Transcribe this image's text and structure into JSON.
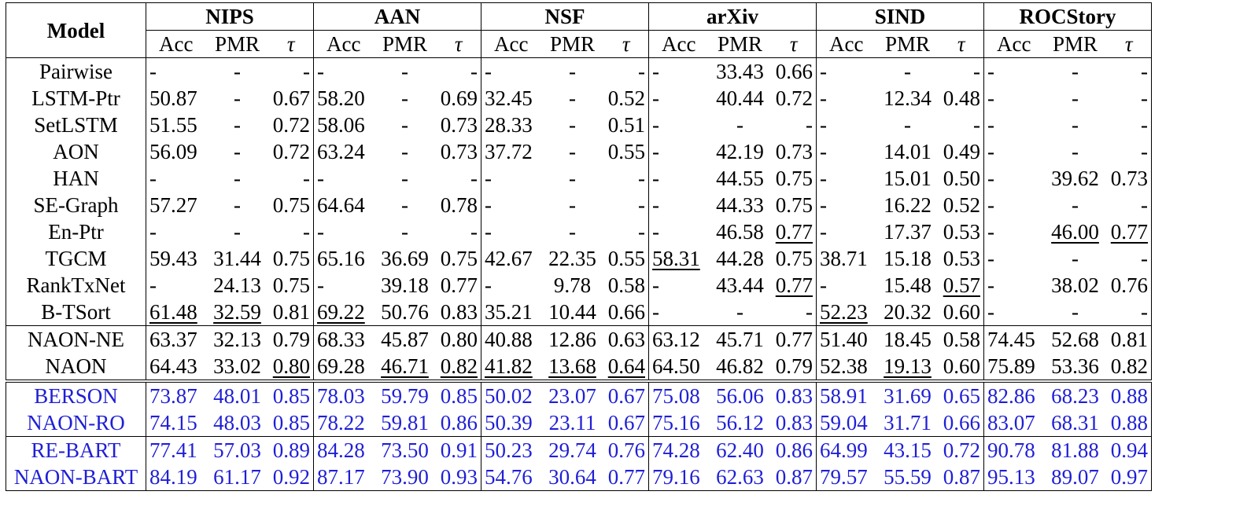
{
  "header": {
    "model_label": "Model",
    "groups": [
      "NIPS",
      "AAN",
      "NSF",
      "arXiv",
      "SIND",
      "ROCStory"
    ],
    "metrics": [
      "Acc",
      "PMR",
      "τ"
    ]
  },
  "styles": {
    "blue_color": "#1f1fd6"
  },
  "rows": [
    {
      "model": "Pairwise",
      "cells": [
        [
          "-",
          "-",
          "-"
        ],
        [
          "-",
          "-",
          "-"
        ],
        [
          "-",
          "-",
          "-"
        ],
        [
          "-",
          "33.43",
          "0.66"
        ],
        [
          "-",
          "-",
          "-"
        ],
        [
          "-",
          "-",
          "-"
        ]
      ],
      "bold": [],
      "underline": []
    },
    {
      "model": "LSTM-Ptr",
      "cells": [
        [
          "50.87",
          "-",
          "0.67"
        ],
        [
          "58.20",
          "-",
          "0.69"
        ],
        [
          "32.45",
          "-",
          "0.52"
        ],
        [
          "-",
          "40.44",
          "0.72"
        ],
        [
          "-",
          "12.34",
          "0.48"
        ],
        [
          "-",
          "-",
          "-"
        ]
      ],
      "bold": [],
      "underline": []
    },
    {
      "model": "SetLSTM",
      "cells": [
        [
          "51.55",
          "-",
          "0.72"
        ],
        [
          "58.06",
          "-",
          "0.73"
        ],
        [
          "28.33",
          "-",
          "0.51"
        ],
        [
          "-",
          "-",
          "-"
        ],
        [
          "-",
          "-",
          "-"
        ],
        [
          "-",
          "-",
          "-"
        ]
      ],
      "bold": [],
      "underline": []
    },
    {
      "model": "AON",
      "cells": [
        [
          "56.09",
          "-",
          "0.72"
        ],
        [
          "63.24",
          "-",
          "0.73"
        ],
        [
          "37.72",
          "-",
          "0.55"
        ],
        [
          "-",
          "42.19",
          "0.73"
        ],
        [
          "-",
          "14.01",
          "0.49"
        ],
        [
          "-",
          "-",
          "-"
        ]
      ],
      "bold": [],
      "underline": []
    },
    {
      "model": "HAN",
      "cells": [
        [
          "-",
          "-",
          "-"
        ],
        [
          "-",
          "-",
          "-"
        ],
        [
          "-",
          "-",
          "-"
        ],
        [
          "-",
          "44.55",
          "0.75"
        ],
        [
          "-",
          "15.01",
          "0.50"
        ],
        [
          "-",
          "39.62",
          "0.73"
        ]
      ],
      "bold": [],
      "underline": []
    },
    {
      "model": "SE-Graph",
      "cells": [
        [
          "57.27",
          "-",
          "0.75"
        ],
        [
          "64.64",
          "-",
          "0.78"
        ],
        [
          "-",
          "-",
          "-"
        ],
        [
          "-",
          "44.33",
          "0.75"
        ],
        [
          "-",
          "16.22",
          "0.52"
        ],
        [
          "-",
          "-",
          "-"
        ]
      ],
      "bold": [],
      "underline": []
    },
    {
      "model": "En-Ptr",
      "cells": [
        [
          "-",
          "-",
          "-"
        ],
        [
          "-",
          "-",
          "-"
        ],
        [
          "-",
          "-",
          "-"
        ],
        [
          "-",
          "46.58",
          "0.77"
        ],
        [
          "-",
          "17.37",
          "0.53"
        ],
        [
          "-",
          "46.00",
          "0.77"
        ]
      ],
      "bold": [],
      "underline": [
        [
          3,
          2
        ],
        [
          5,
          1
        ],
        [
          5,
          2
        ]
      ]
    },
    {
      "model": "TGCM",
      "cells": [
        [
          "59.43",
          "31.44",
          "0.75"
        ],
        [
          "65.16",
          "36.69",
          "0.75"
        ],
        [
          "42.67",
          "22.35",
          "0.55"
        ],
        [
          "58.31",
          "44.28",
          "0.75"
        ],
        [
          "38.71",
          "15.18",
          "0.53"
        ],
        [
          "-",
          "-",
          "-"
        ]
      ],
      "bold": [
        [
          2,
          0
        ],
        [
          2,
          1
        ]
      ],
      "underline": [
        [
          3,
          0
        ]
      ]
    },
    {
      "model": "RankTxNet",
      "cells": [
        [
          "-",
          "24.13",
          "0.75"
        ],
        [
          "-",
          "39.18",
          "0.77"
        ],
        [
          "-",
          "9.78",
          "0.58"
        ],
        [
          "-",
          "43.44",
          "0.77"
        ],
        [
          "-",
          "15.48",
          "0.57"
        ],
        [
          "-",
          "38.02",
          "0.76"
        ]
      ],
      "bold": [],
      "underline": [
        [
          3,
          2
        ],
        [
          4,
          2
        ]
      ]
    },
    {
      "model": "B-TSort",
      "cells": [
        [
          "61.48",
          "32.59",
          "0.81"
        ],
        [
          "69.22",
          "50.76",
          "0.83"
        ],
        [
          "35.21",
          "10.44",
          "0.66"
        ],
        [
          "-",
          "-",
          "-"
        ],
        [
          "52.23",
          "20.32",
          "0.60"
        ],
        [
          "-",
          "-",
          "-"
        ]
      ],
      "bold": [
        [
          0,
          2
        ],
        [
          1,
          1
        ],
        [
          1,
          2
        ],
        [
          2,
          2
        ],
        [
          4,
          1
        ],
        [
          4,
          2
        ]
      ],
      "underline": [
        [
          0,
          0
        ],
        [
          0,
          1
        ],
        [
          1,
          0
        ],
        [
          4,
          0
        ]
      ]
    },
    {
      "model": "NAON-NE",
      "sep": "thin",
      "cells": [
        [
          "63.37",
          "32.13",
          "0.79"
        ],
        [
          "68.33",
          "45.87",
          "0.80"
        ],
        [
          "40.88",
          "12.86",
          "0.63"
        ],
        [
          "63.12",
          "45.71",
          "0.77"
        ],
        [
          "51.40",
          "18.45",
          "0.58"
        ],
        [
          "74.45",
          "52.68",
          "0.81"
        ]
      ],
      "bold": [],
      "underline": []
    },
    {
      "model": "NAON",
      "cells": [
        [
          "64.43",
          "33.02",
          "0.80"
        ],
        [
          "69.28",
          "46.71",
          "0.82"
        ],
        [
          "41.82",
          "13.68",
          "0.64"
        ],
        [
          "64.50",
          "46.82",
          "0.79"
        ],
        [
          "52.38",
          "19.13",
          "0.60"
        ],
        [
          "75.89",
          "53.36",
          "0.82"
        ]
      ],
      "bold": [
        [
          0,
          0
        ],
        [
          0,
          1
        ],
        [
          1,
          0
        ],
        [
          3,
          0
        ],
        [
          3,
          1
        ],
        [
          3,
          2
        ],
        [
          4,
          0
        ],
        [
          4,
          2
        ],
        [
          5,
          0
        ],
        [
          5,
          1
        ],
        [
          5,
          2
        ]
      ],
      "underline": [
        [
          0,
          2
        ],
        [
          1,
          1
        ],
        [
          1,
          2
        ],
        [
          2,
          0
        ],
        [
          2,
          1
        ],
        [
          2,
          2
        ],
        [
          4,
          1
        ]
      ]
    },
    {
      "model": "BERSON",
      "sep": "double",
      "blue": true,
      "cells": [
        [
          "73.87",
          "48.01",
          "0.85"
        ],
        [
          "78.03",
          "59.79",
          "0.85"
        ],
        [
          "50.02",
          "23.07",
          "0.67"
        ],
        [
          "75.08",
          "56.06",
          "0.83"
        ],
        [
          "58.91",
          "31.69",
          "0.65"
        ],
        [
          "82.86",
          "68.23",
          "0.88"
        ]
      ],
      "bold": [],
      "underline": []
    },
    {
      "model": "NAON-RO",
      "blue": true,
      "cells": [
        [
          "74.15",
          "48.03",
          "0.85"
        ],
        [
          "78.22",
          "59.81",
          "0.86"
        ],
        [
          "50.39",
          "23.11",
          "0.67"
        ],
        [
          "75.16",
          "56.12",
          "0.83"
        ],
        [
          "59.04",
          "31.71",
          "0.66"
        ],
        [
          "83.07",
          "68.31",
          "0.88"
        ]
      ],
      "bold": "all",
      "underline": []
    },
    {
      "model": "RE-BART",
      "sep": "thin",
      "blue": true,
      "cells": [
        [
          "77.41",
          "57.03",
          "0.89"
        ],
        [
          "84.28",
          "73.50",
          "0.91"
        ],
        [
          "50.23",
          "29.74",
          "0.76"
        ],
        [
          "74.28",
          "62.40",
          "0.86"
        ],
        [
          "64.99",
          "43.15",
          "0.72"
        ],
        [
          "90.78",
          "81.88",
          "0.94"
        ]
      ],
      "bold": [],
      "underline": []
    },
    {
      "model": "NAON-BART",
      "blue": true,
      "cells": [
        [
          "84.19",
          "61.17",
          "0.92"
        ],
        [
          "87.17",
          "73.90",
          "0.93"
        ],
        [
          "54.76",
          "30.64",
          "0.77"
        ],
        [
          "79.16",
          "62.63",
          "0.87"
        ],
        [
          "79.57",
          "55.59",
          "0.87"
        ],
        [
          "95.13",
          "89.07",
          "0.97"
        ]
      ],
      "bold": "all",
      "underline": []
    }
  ]
}
